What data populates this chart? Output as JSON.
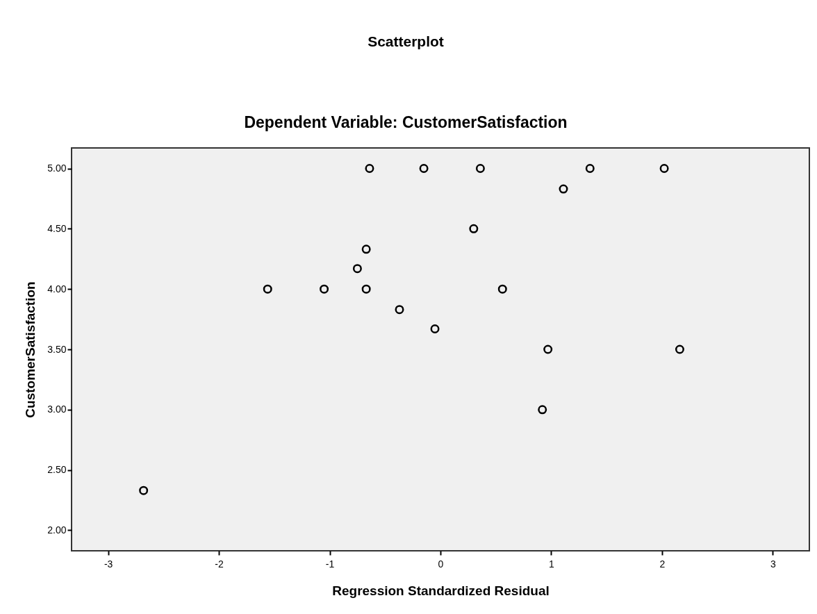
{
  "chart_data": {
    "type": "scatter",
    "title": "Scatterplot",
    "subtitle": "Dependent Variable: CustomerSatisfaction",
    "xlabel": "Regression Standardized Residual",
    "ylabel": "CustomerSatisfaction",
    "x": [
      -0.64,
      -0.15,
      0.36,
      1.35,
      2.02,
      1.11,
      0.3,
      -0.67,
      -0.75,
      -1.56,
      -1.05,
      -0.67,
      0.56,
      -0.37,
      -0.05,
      0.97,
      2.16,
      0.92,
      -2.68
    ],
    "values": [
      5.0,
      5.0,
      5.0,
      5.0,
      5.0,
      4.83,
      4.5,
      4.33,
      4.17,
      4.0,
      4.0,
      4.0,
      4.0,
      3.83,
      3.67,
      3.5,
      3.5,
      3.0,
      2.33
    ],
    "color": "#000000",
    "marker": "circle",
    "grid": false,
    "xlim": [
      -3.33,
      3.33
    ],
    "xticks": [
      -3,
      -2,
      -1,
      0,
      1,
      2,
      3
    ],
    "ylim": [
      1.83,
      5.17
    ],
    "yticks": [
      {
        "value": 2,
        "label": "2.00"
      },
      {
        "value": 2.5,
        "label": "2.50"
      },
      {
        "value": 3,
        "label": "3.00"
      },
      {
        "value": 3.5,
        "label": "3.50"
      },
      {
        "value": 4,
        "label": "4.00"
      },
      {
        "value": 4.5,
        "label": "4.50"
      },
      {
        "value": 5,
        "label": "5.00"
      }
    ]
  }
}
